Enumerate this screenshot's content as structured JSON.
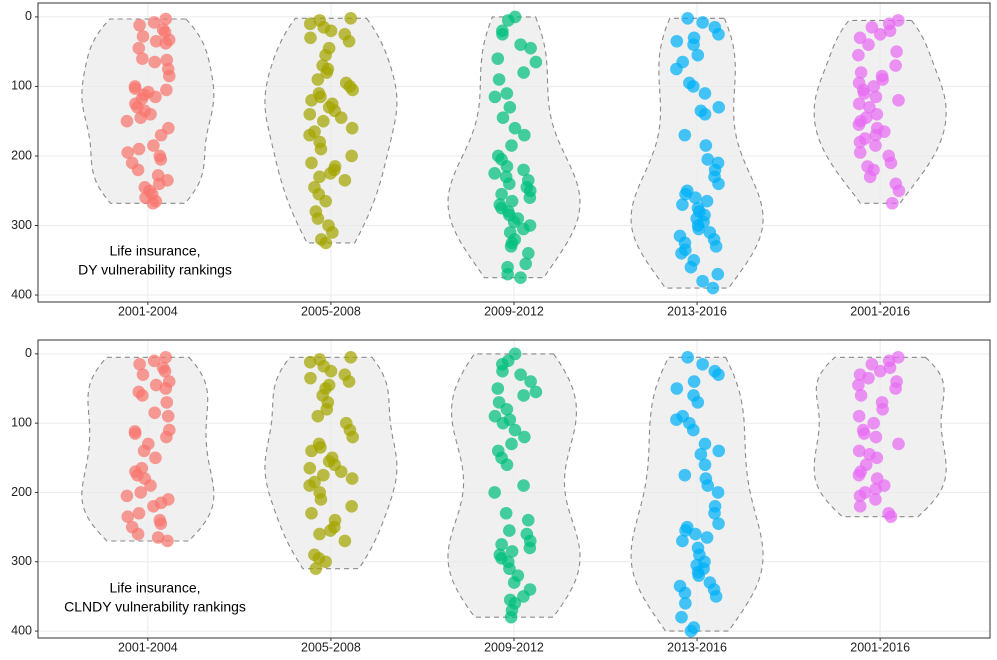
{
  "chart_data": [
    {
      "type": "violin",
      "categories": [
        "2001-2004",
        "2005-2008",
        "2009-2012",
        "2013-2016",
        "2001-2016"
      ],
      "colors": [
        "#F8766D",
        "#A3A500",
        "#00BF7D",
        "#00B0F6",
        "#E76BF3"
      ],
      "annotation": [
        "Life insurance,",
        "DY vulnerability rankings"
      ],
      "ylim": [
        -20,
        410
      ],
      "y_reversed": true,
      "yticks": [
        0,
        100,
        200,
        300,
        400
      ],
      "grid": true,
      "values": [
        [
          3,
          8,
          12,
          18,
          22,
          28,
          33,
          35,
          38,
          45,
          60,
          62,
          65,
          75,
          85,
          100,
          103,
          105,
          108,
          112,
          115,
          118,
          125,
          130,
          135,
          140,
          145,
          150,
          160,
          170,
          185,
          190,
          195,
          200,
          205,
          210,
          220,
          228,
          235,
          240,
          245,
          250,
          255,
          260,
          265,
          268
        ],
        [
          2,
          5,
          10,
          15,
          20,
          25,
          30,
          35,
          45,
          55,
          70,
          75,
          80,
          90,
          95,
          100,
          105,
          110,
          115,
          120,
          125,
          130,
          135,
          140,
          145,
          150,
          160,
          165,
          170,
          180,
          190,
          200,
          210,
          215,
          220,
          225,
          230,
          235,
          245,
          255,
          265,
          280,
          290,
          300,
          310,
          320,
          325
        ],
        [
          0,
          5,
          20,
          25,
          40,
          45,
          60,
          65,
          80,
          90,
          110,
          115,
          130,
          145,
          160,
          170,
          185,
          200,
          205,
          215,
          220,
          225,
          230,
          235,
          240,
          245,
          250,
          255,
          260,
          265,
          270,
          275,
          280,
          285,
          290,
          295,
          300,
          305,
          310,
          320,
          325,
          330,
          340,
          355,
          360,
          370,
          375
        ],
        [
          2,
          8,
          15,
          25,
          30,
          35,
          40,
          55,
          65,
          75,
          95,
          100,
          110,
          130,
          135,
          140,
          170,
          185,
          205,
          210,
          220,
          230,
          240,
          250,
          255,
          260,
          265,
          270,
          275,
          280,
          285,
          290,
          295,
          300,
          305,
          310,
          315,
          320,
          325,
          330,
          335,
          340,
          350,
          360,
          370,
          380,
          390
        ],
        [
          5,
          10,
          15,
          20,
          25,
          30,
          40,
          50,
          55,
          70,
          80,
          85,
          90,
          95,
          100,
          105,
          110,
          115,
          120,
          125,
          130,
          140,
          145,
          150,
          155,
          160,
          165,
          170,
          175,
          180,
          185,
          195,
          200,
          210,
          215,
          220,
          230,
          240,
          250,
          268
        ]
      ]
    },
    {
      "type": "violin",
      "categories": [
        "2001-2004",
        "2005-2008",
        "2009-2012",
        "2013-2016",
        "2001-2016"
      ],
      "colors": [
        "#F8766D",
        "#A3A500",
        "#00BF7D",
        "#00B0F6",
        "#E76BF3"
      ],
      "annotation": [
        "Life insurance,",
        "CLNDY vulnerability rankings"
      ],
      "ylim": [
        -20,
        410
      ],
      "y_reversed": true,
      "yticks": [
        0,
        100,
        200,
        300,
        400
      ],
      "grid": true,
      "values": [
        [
          5,
          10,
          15,
          20,
          25,
          30,
          40,
          45,
          50,
          55,
          60,
          70,
          85,
          90,
          110,
          112,
          115,
          120,
          130,
          140,
          150,
          165,
          170,
          175,
          180,
          190,
          200,
          205,
          210,
          215,
          220,
          230,
          235,
          240,
          245,
          250,
          260,
          265,
          270
        ],
        [
          5,
          8,
          12,
          18,
          25,
          30,
          35,
          40,
          45,
          50,
          60,
          70,
          80,
          90,
          100,
          110,
          120,
          130,
          135,
          140,
          150,
          155,
          160,
          165,
          170,
          175,
          180,
          185,
          190,
          200,
          210,
          220,
          230,
          240,
          250,
          255,
          260,
          270,
          290,
          295,
          300,
          310
        ],
        [
          0,
          10,
          15,
          25,
          30,
          40,
          50,
          55,
          60,
          70,
          80,
          90,
          95,
          100,
          110,
          120,
          130,
          140,
          150,
          160,
          190,
          200,
          230,
          240,
          255,
          260,
          270,
          275,
          280,
          285,
          290,
          295,
          300,
          310,
          320,
          330,
          340,
          350,
          355,
          360,
          370,
          380
        ],
        [
          5,
          15,
          25,
          30,
          40,
          50,
          60,
          70,
          90,
          95,
          100,
          110,
          130,
          140,
          145,
          160,
          175,
          180,
          190,
          200,
          220,
          230,
          245,
          250,
          255,
          260,
          265,
          270,
          280,
          290,
          300,
          305,
          310,
          315,
          320,
          330,
          335,
          340,
          345,
          350,
          360,
          380,
          395,
          400
        ],
        [
          5,
          10,
          15,
          20,
          25,
          30,
          35,
          40,
          45,
          50,
          60,
          70,
          80,
          90,
          100,
          110,
          115,
          120,
          130,
          140,
          145,
          150,
          160,
          170,
          175,
          180,
          190,
          195,
          200,
          205,
          210,
          220,
          230,
          235
        ]
      ]
    }
  ]
}
